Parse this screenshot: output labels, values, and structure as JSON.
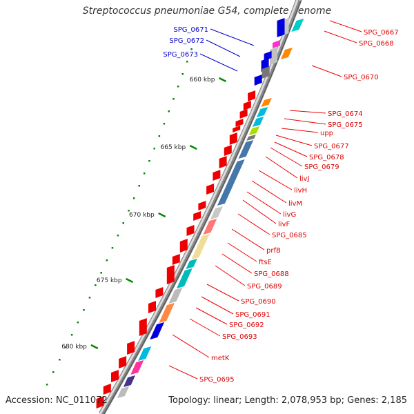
{
  "title": "Streptococcus pneumoniae G54, complete genome",
  "footer": {
    "accession": "Accession: NC_011072",
    "summary": "Topology: linear; Length: 2,078,953 bp; Genes: 2,185"
  },
  "colors": {
    "backbone": "#888888",
    "forward_gene": "#ee0000",
    "reverse_gene": "#0000dd",
    "reverse_label": "#0000cc",
    "forward_label": "#dd0000",
    "tick": "#008800"
  },
  "kbp_ticks": [
    {
      "label": "660 kbp"
    },
    {
      "label": "665 kbp"
    },
    {
      "label": "670 kbp"
    },
    {
      "label": "675 kbp"
    },
    {
      "label": "680 kbp"
    }
  ],
  "left_labels": [
    {
      "text": "SPG_0671"
    },
    {
      "text": "SPG_0672"
    },
    {
      "text": "SPG_0673"
    }
  ],
  "right_labels": [
    {
      "text": "SPG_0667"
    },
    {
      "text": "SPG_0668"
    },
    {
      "text": "SPG_0670"
    },
    {
      "text": "SPG_0674"
    },
    {
      "text": "SPG_0675"
    },
    {
      "text": "upp"
    },
    {
      "text": "SPG_0677"
    },
    {
      "text": "SPG_0678"
    },
    {
      "text": "SPG_0679"
    },
    {
      "text": "livJ"
    },
    {
      "text": "livH"
    },
    {
      "text": "livM"
    },
    {
      "text": "livG"
    },
    {
      "text": "livF"
    },
    {
      "text": "SPG_0685"
    },
    {
      "text": "prfB"
    },
    {
      "text": "ftsE"
    },
    {
      "text": "SPG_0688"
    },
    {
      "text": "SPG_0689"
    },
    {
      "text": "SPG_0690"
    },
    {
      "text": "SPG_0691"
    },
    {
      "text": "SPG_0692"
    },
    {
      "text": "SPG_0693"
    },
    {
      "text": "metK"
    },
    {
      "text": "SPG_0695"
    }
  ]
}
